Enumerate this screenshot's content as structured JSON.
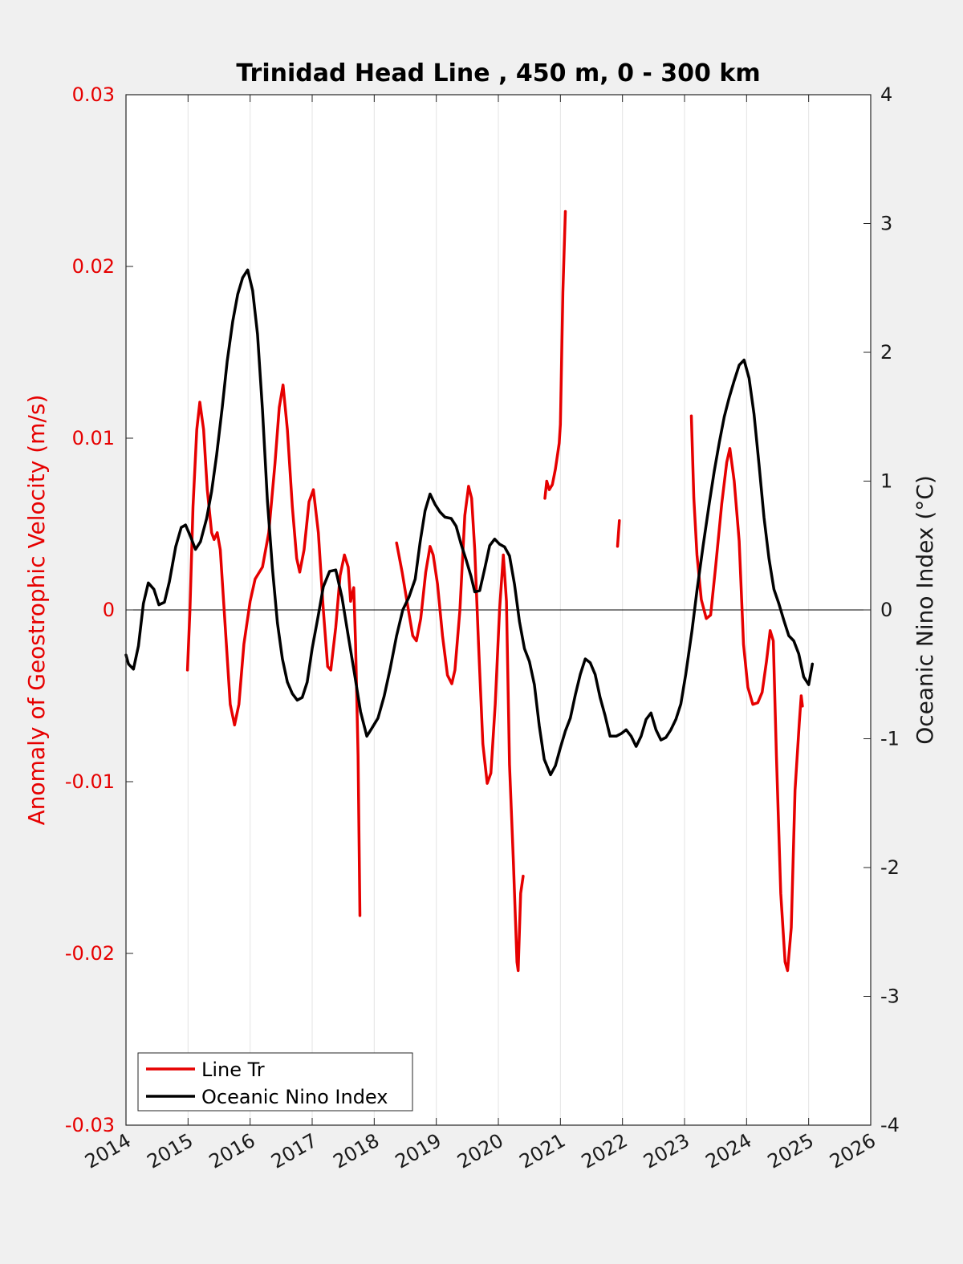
{
  "chart_data": {
    "type": "line",
    "title": "Trinidad Head Line , 450 m, 0 - 300 km",
    "ylabel_left": "Anomaly of Geostrophic Velocity (m/s)",
    "ylabel_right": "Oceanic Nino Index (°C)",
    "xlim": [
      2014,
      2026
    ],
    "ylim_left": [
      -0.03,
      0.03
    ],
    "ylim_right": [
      -4,
      4
    ],
    "x_ticks": [
      "2014",
      "2015",
      "2016",
      "2017",
      "2018",
      "2019",
      "2020",
      "2021",
      "2022",
      "2023",
      "2024",
      "2025",
      "2026"
    ],
    "y_ticks_left": [
      "0.03",
      "0.02",
      "0.01",
      "0",
      "-0.01",
      "-0.02",
      "-0.03"
    ],
    "y_ticks_right": [
      "4",
      "3",
      "2",
      "1",
      "0",
      "-1",
      "-2",
      "-3",
      "-4"
    ],
    "grid": "vertical",
    "legend_position": "bottom-left",
    "colors": {
      "line_tr": "#e60000",
      "oni": "#000000",
      "left_axis": "#e60000"
    },
    "series": [
      {
        "name": "Line Tr",
        "axis": "left",
        "segments": [
          [
            [
              2014.99,
              -0.0035
            ],
            [
              2015.03,
              0.0
            ],
            [
              2015.08,
              0.006
            ],
            [
              2015.14,
              0.0105
            ],
            [
              2015.19,
              0.0121
            ],
            [
              2015.25,
              0.0105
            ],
            [
              2015.31,
              0.007
            ],
            [
              2015.38,
              0.0045
            ],
            [
              2015.42,
              0.0041
            ],
            [
              2015.47,
              0.0045
            ],
            [
              2015.52,
              0.0035
            ],
            [
              2015.6,
              -0.001
            ],
            [
              2015.68,
              -0.0055
            ],
            [
              2015.75,
              -0.0067
            ],
            [
              2015.82,
              -0.0055
            ],
            [
              2015.9,
              -0.002
            ],
            [
              2016.0,
              0.0005
            ],
            [
              2016.08,
              0.0018
            ],
            [
              2016.2,
              0.0025
            ],
            [
              2016.3,
              0.0045
            ],
            [
              2016.4,
              0.0085
            ],
            [
              2016.47,
              0.0118
            ],
            [
              2016.53,
              0.0131
            ],
            [
              2016.6,
              0.0105
            ],
            [
              2016.68,
              0.006
            ],
            [
              2016.75,
              0.003
            ],
            [
              2016.8,
              0.0022
            ],
            [
              2016.87,
              0.0035
            ],
            [
              2016.95,
              0.0063
            ],
            [
              2017.02,
              0.007
            ],
            [
              2017.1,
              0.0045
            ],
            [
              2017.18,
              0.0
            ],
            [
              2017.25,
              -0.0033
            ],
            [
              2017.3,
              -0.0035
            ],
            [
              2017.38,
              -0.001
            ],
            [
              2017.45,
              0.002
            ],
            [
              2017.52,
              0.0032
            ],
            [
              2017.58,
              0.0025
            ],
            [
              2017.62,
              0.0005
            ],
            [
              2017.67,
              0.0013
            ],
            [
              2017.7,
              -0.002
            ],
            [
              2017.74,
              -0.0085
            ],
            [
              2017.77,
              -0.0178
            ]
          ],
          [
            [
              2018.36,
              0.0039
            ],
            [
              2018.45,
              0.0022
            ],
            [
              2018.55,
              0.0
            ],
            [
              2018.62,
              -0.0015
            ],
            [
              2018.68,
              -0.0018
            ],
            [
              2018.75,
              -0.0005
            ],
            [
              2018.83,
              0.0022
            ],
            [
              2018.9,
              0.0037
            ],
            [
              2018.95,
              0.0032
            ],
            [
              2019.02,
              0.0015
            ],
            [
              2019.1,
              -0.0015
            ],
            [
              2019.18,
              -0.0038
            ],
            [
              2019.25,
              -0.0043
            ],
            [
              2019.3,
              -0.0035
            ],
            [
              2019.38,
              0.0
            ],
            [
              2019.46,
              0.0055
            ],
            [
              2019.52,
              0.0072
            ],
            [
              2019.57,
              0.0065
            ],
            [
              2019.62,
              0.0035
            ],
            [
              2019.68,
              -0.002
            ],
            [
              2019.75,
              -0.0078
            ],
            [
              2019.82,
              -0.0101
            ],
            [
              2019.88,
              -0.0095
            ],
            [
              2019.95,
              -0.0055
            ],
            [
              2020.02,
              0.0
            ],
            [
              2020.08,
              0.0032
            ],
            [
              2020.13,
              0.0005
            ],
            [
              2020.18,
              -0.009
            ],
            [
              2020.24,
              -0.0145
            ],
            [
              2020.3,
              -0.0205
            ],
            [
              2020.32,
              -0.021
            ],
            [
              2020.36,
              -0.0165
            ],
            [
              2020.4,
              -0.0155
            ]
          ],
          [
            [
              2020.75,
              0.0065
            ],
            [
              2020.78,
              0.0075
            ],
            [
              2020.82,
              0.007
            ],
            [
              2020.87,
              0.0073
            ],
            [
              2020.92,
              0.0082
            ],
            [
              2020.98,
              0.0097
            ],
            [
              2021.0,
              0.0108
            ],
            [
              2021.04,
              0.0185
            ],
            [
              2021.08,
              0.0232
            ]
          ],
          [
            [
              2021.92,
              0.0037
            ],
            [
              2021.95,
              0.0052
            ]
          ],
          [
            [
              2023.11,
              0.0113
            ],
            [
              2023.15,
              0.0065
            ],
            [
              2023.2,
              0.0032
            ],
            [
              2023.27,
              0.0006
            ],
            [
              2023.35,
              -0.0005
            ],
            [
              2023.42,
              -0.0003
            ],
            [
              2023.5,
              0.0025
            ],
            [
              2023.6,
              0.0062
            ],
            [
              2023.68,
              0.0086
            ],
            [
              2023.73,
              0.0094
            ],
            [
              2023.8,
              0.0075
            ],
            [
              2023.88,
              0.004
            ],
            [
              2023.95,
              -0.002
            ],
            [
              2024.02,
              -0.0045
            ],
            [
              2024.1,
              -0.0055
            ],
            [
              2024.18,
              -0.0054
            ],
            [
              2024.25,
              -0.0048
            ],
            [
              2024.32,
              -0.003
            ],
            [
              2024.38,
              -0.0012
            ],
            [
              2024.43,
              -0.0018
            ],
            [
              2024.48,
              -0.0085
            ],
            [
              2024.55,
              -0.0165
            ],
            [
              2024.62,
              -0.0205
            ],
            [
              2024.66,
              -0.021
            ],
            [
              2024.72,
              -0.0185
            ],
            [
              2024.78,
              -0.0105
            ],
            [
              2024.85,
              -0.0065
            ],
            [
              2024.88,
              -0.005
            ],
            [
              2024.9,
              -0.0056
            ]
          ]
        ]
      },
      {
        "name": "Oceanic Nino Index",
        "axis": "right",
        "segments": [
          [
            [
              2014.0,
              -0.35
            ],
            [
              2014.04,
              -0.42
            ],
            [
              2014.12,
              -0.46
            ],
            [
              2014.2,
              -0.28
            ],
            [
              2014.28,
              0.05
            ],
            [
              2014.36,
              0.21
            ],
            [
              2014.45,
              0.16
            ],
            [
              2014.53,
              0.04
            ],
            [
              2014.62,
              0.06
            ],
            [
              2014.7,
              0.22
            ],
            [
              2014.8,
              0.49
            ],
            [
              2014.89,
              0.64
            ],
            [
              2014.96,
              0.66
            ],
            [
              2015.04,
              0.57
            ],
            [
              2015.12,
              0.47
            ],
            [
              2015.2,
              0.53
            ],
            [
              2015.3,
              0.71
            ],
            [
              2015.38,
              0.92
            ],
            [
              2015.46,
              1.2
            ],
            [
              2015.55,
              1.57
            ],
            [
              2015.63,
              1.93
            ],
            [
              2015.72,
              2.24
            ],
            [
              2015.8,
              2.45
            ],
            [
              2015.88,
              2.58
            ],
            [
              2015.96,
              2.64
            ],
            [
              2016.04,
              2.48
            ],
            [
              2016.12,
              2.14
            ],
            [
              2016.2,
              1.55
            ],
            [
              2016.28,
              0.84
            ],
            [
              2016.36,
              0.32
            ],
            [
              2016.44,
              -0.1
            ],
            [
              2016.52,
              -0.38
            ],
            [
              2016.6,
              -0.56
            ],
            [
              2016.68,
              -0.65
            ],
            [
              2016.76,
              -0.7
            ],
            [
              2016.84,
              -0.68
            ],
            [
              2016.92,
              -0.56
            ],
            [
              2017.0,
              -0.3
            ],
            [
              2017.1,
              -0.04
            ],
            [
              2017.18,
              0.18
            ],
            [
              2017.28,
              0.3
            ],
            [
              2017.38,
              0.31
            ],
            [
              2017.48,
              0.1
            ],
            [
              2017.58,
              -0.2
            ],
            [
              2017.68,
              -0.49
            ],
            [
              2017.78,
              -0.79
            ],
            [
              2017.88,
              -0.98
            ],
            [
              2017.96,
              -0.92
            ],
            [
              2018.06,
              -0.84
            ],
            [
              2018.16,
              -0.67
            ],
            [
              2018.26,
              -0.45
            ],
            [
              2018.36,
              -0.2
            ],
            [
              2018.46,
              0.0
            ],
            [
              2018.56,
              0.1
            ],
            [
              2018.66,
              0.24
            ],
            [
              2018.74,
              0.53
            ],
            [
              2018.82,
              0.77
            ],
            [
              2018.9,
              0.9
            ],
            [
              2018.98,
              0.82
            ],
            [
              2019.06,
              0.76
            ],
            [
              2019.14,
              0.72
            ],
            [
              2019.24,
              0.71
            ],
            [
              2019.32,
              0.65
            ],
            [
              2019.4,
              0.51
            ],
            [
              2019.48,
              0.39
            ],
            [
              2019.56,
              0.26
            ],
            [
              2019.62,
              0.14
            ],
            [
              2019.7,
              0.15
            ],
            [
              2019.78,
              0.32
            ],
            [
              2019.86,
              0.5
            ],
            [
              2019.94,
              0.55
            ],
            [
              2020.02,
              0.51
            ],
            [
              2020.1,
              0.49
            ],
            [
              2020.18,
              0.42
            ],
            [
              2020.26,
              0.2
            ],
            [
              2020.34,
              -0.09
            ],
            [
              2020.42,
              -0.3
            ],
            [
              2020.5,
              -0.4
            ],
            [
              2020.58,
              -0.58
            ],
            [
              2020.66,
              -0.9
            ],
            [
              2020.74,
              -1.16
            ],
            [
              2020.84,
              -1.28
            ],
            [
              2020.92,
              -1.21
            ],
            [
              2021.0,
              -1.07
            ],
            [
              2021.08,
              -0.94
            ],
            [
              2021.16,
              -0.84
            ],
            [
              2021.24,
              -0.66
            ],
            [
              2021.32,
              -0.5
            ],
            [
              2021.4,
              -0.38
            ],
            [
              2021.48,
              -0.41
            ],
            [
              2021.56,
              -0.5
            ],
            [
              2021.64,
              -0.68
            ],
            [
              2021.72,
              -0.82
            ],
            [
              2021.8,
              -0.98
            ],
            [
              2021.9,
              -0.98
            ],
            [
              2021.98,
              -0.96
            ],
            [
              2022.06,
              -0.93
            ],
            [
              2022.14,
              -0.98
            ],
            [
              2022.22,
              -1.06
            ],
            [
              2022.3,
              -0.98
            ],
            [
              2022.38,
              -0.85
            ],
            [
              2022.46,
              -0.8
            ],
            [
              2022.54,
              -0.93
            ],
            [
              2022.62,
              -1.01
            ],
            [
              2022.7,
              -0.99
            ],
            [
              2022.78,
              -0.93
            ],
            [
              2022.86,
              -0.85
            ],
            [
              2022.94,
              -0.73
            ],
            [
              2023.02,
              -0.5
            ],
            [
              2023.12,
              -0.16
            ],
            [
              2023.2,
              0.15
            ],
            [
              2023.3,
              0.5
            ],
            [
              2023.4,
              0.83
            ],
            [
              2023.48,
              1.08
            ],
            [
              2023.56,
              1.3
            ],
            [
              2023.64,
              1.5
            ],
            [
              2023.72,
              1.65
            ],
            [
              2023.8,
              1.78
            ],
            [
              2023.88,
              1.9
            ],
            [
              2023.96,
              1.94
            ],
            [
              2024.04,
              1.8
            ],
            [
              2024.12,
              1.52
            ],
            [
              2024.2,
              1.13
            ],
            [
              2024.28,
              0.72
            ],
            [
              2024.36,
              0.4
            ],
            [
              2024.44,
              0.16
            ],
            [
              2024.52,
              0.05
            ],
            [
              2024.6,
              -0.08
            ],
            [
              2024.68,
              -0.2
            ],
            [
              2024.76,
              -0.24
            ],
            [
              2024.84,
              -0.34
            ],
            [
              2024.92,
              -0.52
            ],
            [
              2025.0,
              -0.58
            ],
            [
              2025.06,
              -0.42
            ]
          ]
        ]
      }
    ]
  }
}
